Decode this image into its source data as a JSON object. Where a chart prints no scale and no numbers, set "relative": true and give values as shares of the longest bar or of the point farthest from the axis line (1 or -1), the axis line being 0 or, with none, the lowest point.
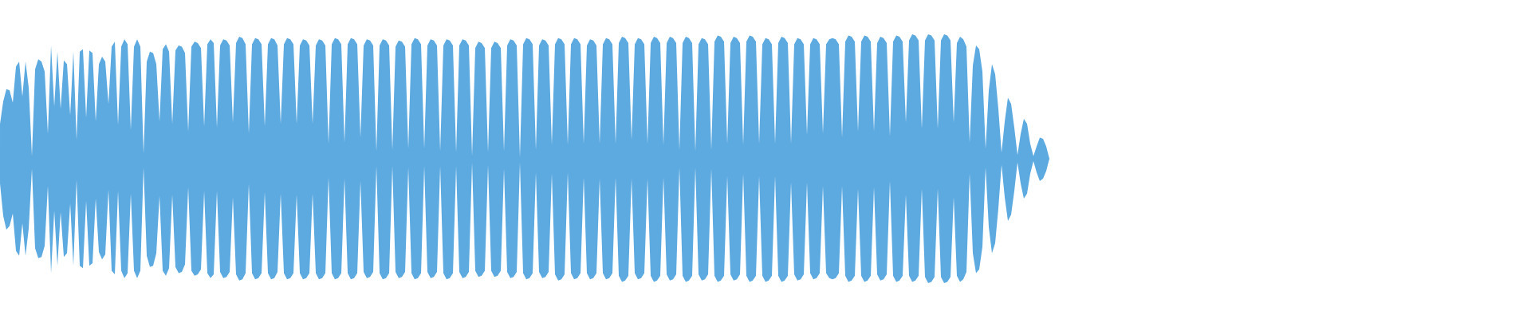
{
  "chart_data": {
    "type": "area",
    "relative": true,
    "categories": [
      null,
      null,
      null,
      null,
      null,
      null,
      null,
      null,
      null,
      null,
      null,
      null,
      null,
      null,
      null,
      null,
      null,
      null,
      null,
      null,
      null,
      null,
      null,
      null,
      null,
      null,
      null,
      null,
      null,
      null,
      null,
      null,
      null,
      null,
      null,
      null,
      null,
      null,
      null,
      null,
      null,
      null,
      null,
      null,
      null,
      null,
      null,
      null,
      null,
      null,
      null,
      null,
      null,
      null,
      null,
      null,
      null,
      null,
      null,
      null,
      null,
      null,
      null,
      null,
      null,
      null,
      null,
      null,
      null,
      null,
      null,
      null,
      null,
      null,
      null,
      null,
      null,
      null,
      null,
      null,
      null,
      null,
      null,
      null,
      null,
      null,
      null,
      null,
      null,
      null,
      null,
      null,
      null,
      null,
      null,
      null,
      null,
      null,
      null,
      null,
      null,
      null,
      null,
      null,
      null,
      null,
      null,
      null,
      null,
      null,
      null,
      null,
      null,
      null,
      null,
      null,
      null,
      null,
      null,
      null,
      null,
      null,
      null,
      null,
      null,
      null,
      null,
      null,
      null,
      null,
      null,
      null,
      null,
      null,
      null,
      null,
      null,
      null,
      null,
      null,
      null,
      null,
      null,
      null,
      null,
      null,
      null,
      null,
      null,
      null,
      null,
      null,
      null,
      null,
      null,
      null,
      null,
      null,
      null,
      null,
      null,
      null,
      null,
      null,
      null,
      null,
      null,
      null,
      null,
      null,
      null,
      null,
      null,
      null,
      null,
      null,
      null,
      null,
      null,
      null,
      null,
      null,
      null,
      null,
      null,
      null,
      null,
      null,
      null,
      null,
      null,
      null,
      null,
      null,
      null,
      null,
      null,
      null,
      null,
      null,
      null,
      null,
      null,
      null,
      null,
      null,
      null,
      null,
      null,
      null,
      null,
      null,
      null,
      null,
      null,
      null,
      null,
      null,
      null,
      null,
      null,
      null,
      null,
      null,
      null,
      null,
      null,
      null,
      null,
      null,
      null,
      null,
      null,
      null,
      null,
      null,
      null,
      null,
      null,
      null,
      null,
      null,
      null,
      null,
      null,
      null,
      null,
      null,
      null,
      null,
      null,
      null,
      null,
      null,
      null,
      null,
      null,
      null,
      null,
      null,
      null,
      null,
      null,
      null,
      null,
      null,
      null,
      null,
      null,
      null,
      null,
      null,
      null,
      null,
      null,
      null,
      null,
      null,
      null,
      null,
      null,
      null,
      null,
      null,
      null,
      null,
      null,
      null,
      null,
      null,
      null,
      null,
      null,
      null,
      null,
      null,
      null,
      null,
      null,
      null,
      null,
      null,
      null,
      null,
      null,
      null,
      null,
      null,
      null,
      null,
      null,
      null,
      null,
      null,
      null,
      null,
      null,
      null,
      null,
      null,
      null,
      null,
      null,
      null,
      null,
      null,
      null,
      null,
      null,
      null
    ],
    "series": [
      {
        "color": "#5daae1",
        "values": [
          0.28,
          0.46,
          0.56,
          0.55,
          0.45,
          0.74,
          0.78,
          0.5,
          0.78,
          0.57,
          0.02,
          0.72,
          0.8,
          0.78,
          0.7,
          0.2,
          0.91,
          0.42,
          0.86,
          0.4,
          0.79,
          0.76,
          0.35,
          0.86,
          0.15,
          0.86,
          0.88,
          0.33,
          0.87,
          0.85,
          0.3,
          0.76,
          0.82,
          0.78,
          0.44,
          0.9,
          0.94,
          0.27,
          0.9,
          0.96,
          0.92,
          0.23,
          0.9,
          0.96,
          0.9,
          0.04,
          0.78,
          0.86,
          0.85,
          0.76,
          0.3,
          0.88,
          0.92,
          0.86,
          0.28,
          0.87,
          0.91,
          0.9,
          0.85,
          0.22,
          0.9,
          0.94,
          0.93,
          0.89,
          0.26,
          0.92,
          0.96,
          0.93,
          0.25,
          0.91,
          0.96,
          0.95,
          0.91,
          0.29,
          0.93,
          0.98,
          0.97,
          0.92,
          0.2,
          0.92,
          0.97,
          0.96,
          0.92,
          0.26,
          0.92,
          0.97,
          0.96,
          0.91,
          0.28,
          0.92,
          0.97,
          0.96,
          0.92,
          0.28,
          0.91,
          0.96,
          0.95,
          0.91,
          0.28,
          0.91,
          0.96,
          0.95,
          0.91,
          0.12,
          0.92,
          0.97,
          0.96,
          0.92,
          0.13,
          0.92,
          0.97,
          0.96,
          0.92,
          0.17,
          0.91,
          0.96,
          0.95,
          0.91,
          0.06,
          0.91,
          0.96,
          0.95,
          0.91,
          0.07,
          0.9,
          0.95,
          0.94,
          0.9,
          0.08,
          0.92,
          0.97,
          0.96,
          0.92,
          0.08,
          0.91,
          0.96,
          0.95,
          0.91,
          0.06,
          0.91,
          0.96,
          0.95,
          0.91,
          0.05,
          0.91,
          0.96,
          0.95,
          0.91,
          0.02,
          0.89,
          0.94,
          0.93,
          0.89,
          0.05,
          0.89,
          0.94,
          0.93,
          0.89,
          0.06,
          0.91,
          0.96,
          0.95,
          0.91,
          0.01,
          0.92,
          0.97,
          0.96,
          0.92,
          0.07,
          0.91,
          0.96,
          0.95,
          0.91,
          0.11,
          0.92,
          0.97,
          0.96,
          0.92,
          0.11,
          0.92,
          0.97,
          0.96,
          0.92,
          0.12,
          0.91,
          0.96,
          0.95,
          0.91,
          0.12,
          0.92,
          0.97,
          0.96,
          0.92,
          0.12,
          0.93,
          0.98,
          0.97,
          0.93,
          0.15,
          0.92,
          0.97,
          0.96,
          0.92,
          0.12,
          0.93,
          0.98,
          0.97,
          0.93,
          0.11,
          0.93,
          0.98,
          0.97,
          0.93,
          0.07,
          0.93,
          0.98,
          0.97,
          0.93,
          0.06,
          0.92,
          0.97,
          0.96,
          0.92,
          0.07,
          0.94,
          0.99,
          0.98,
          0.94,
          0.12,
          0.93,
          0.98,
          0.97,
          0.93,
          0.11,
          0.94,
          0.99,
          0.98,
          0.94,
          0.12,
          0.92,
          0.97,
          0.96,
          0.92,
          0.12,
          0.93,
          0.98,
          0.97,
          0.93,
          0.12,
          0.92,
          0.97,
          0.96,
          0.92,
          0.19,
          0.92,
          0.97,
          0.96,
          0.92,
          0.2,
          0.92,
          0.96,
          0.97,
          0.96,
          0.92,
          0.17,
          0.94,
          0.99,
          0.98,
          0.94,
          0.22,
          0.94,
          0.99,
          0.98,
          0.94,
          0.22,
          0.93,
          0.98,
          0.97,
          0.93,
          0.18,
          0.94,
          0.99,
          0.98,
          0.94,
          0.29,
          0.95,
          1.0,
          0.99,
          0.95,
          0.24,
          0.95,
          1.0,
          0.99,
          0.95,
          0.24,
          0.95,
          1.0,
          0.99,
          0.95,
          0.29,
          0.93,
          0.98,
          0.96,
          0.9,
          0.13,
          0.75,
          0.91,
          0.88,
          0.7,
          0.08,
          0.55,
          0.76,
          0.68,
          0.4,
          0.05,
          0.3,
          0.49,
          0.44,
          0.25,
          0.03,
          0.2,
          0.32,
          0.28,
          0.12,
          0.02,
          0.1,
          0.17,
          0.16,
          0.1,
          0
        ]
      },
      {
        "color": "#5daae1",
        "values": [
          -0.2,
          -0.46,
          -0.57,
          -0.54,
          -0.44,
          -0.74,
          -0.78,
          -0.52,
          -0.78,
          -0.56,
          -0.08,
          -0.72,
          -0.8,
          -0.79,
          -0.7,
          -0.22,
          -0.92,
          -0.42,
          -0.86,
          -0.43,
          -0.79,
          -0.76,
          -0.36,
          -0.86,
          -0.17,
          -0.86,
          -0.88,
          -0.34,
          -0.86,
          -0.84,
          -0.32,
          -0.75,
          -0.81,
          -0.77,
          -0.25,
          -0.9,
          -0.93,
          -0.26,
          -0.9,
          -0.96,
          -0.92,
          -0.28,
          -0.9,
          -0.96,
          -0.9,
          -0.07,
          -0.78,
          -0.87,
          -0.86,
          -0.76,
          -0.3,
          -0.9,
          -0.94,
          -0.88,
          -0.29,
          -0.87,
          -0.92,
          -0.91,
          -0.85,
          -0.23,
          -0.9,
          -0.94,
          -0.93,
          -0.89,
          -0.26,
          -0.92,
          -0.96,
          -0.93,
          -0.26,
          -0.91,
          -0.96,
          -0.95,
          -0.91,
          -0.31,
          -0.93,
          -0.98,
          -0.97,
          -0.92,
          -0.2,
          -0.92,
          -0.97,
          -0.96,
          -0.92,
          -0.27,
          -0.92,
          -0.97,
          -0.96,
          -0.91,
          -0.28,
          -0.92,
          -0.97,
          -0.96,
          -0.92,
          -0.29,
          -0.92,
          -0.97,
          -0.96,
          -0.92,
          -0.28,
          -0.92,
          -0.97,
          -0.96,
          -0.92,
          -0.15,
          -0.92,
          -0.97,
          -0.96,
          -0.92,
          -0.16,
          -0.92,
          -0.97,
          -0.96,
          -0.92,
          -0.18,
          -0.91,
          -0.96,
          -0.95,
          -0.91,
          -0.06,
          -0.92,
          -0.97,
          -0.96,
          -0.92,
          -0.06,
          -0.91,
          -0.96,
          -0.95,
          -0.91,
          -0.07,
          -0.92,
          -0.97,
          -0.96,
          -0.92,
          -0.06,
          -0.91,
          -0.96,
          -0.95,
          -0.91,
          -0.06,
          -0.92,
          -0.97,
          -0.96,
          -0.92,
          -0.06,
          -0.91,
          -0.96,
          -0.95,
          -0.91,
          -0.03,
          -0.9,
          -0.95,
          -0.94,
          -0.9,
          -0.05,
          -0.9,
          -0.95,
          -0.94,
          -0.9,
          -0.08,
          -0.91,
          -0.96,
          -0.95,
          -0.91,
          -0.03,
          -0.92,
          -0.97,
          -0.96,
          -0.92,
          -0.11,
          -0.91,
          -0.96,
          -0.95,
          -0.91,
          -0.12,
          -0.93,
          -0.98,
          -0.97,
          -0.93,
          -0.11,
          -0.92,
          -0.97,
          -0.96,
          -0.92,
          -0.15,
          -0.92,
          -0.97,
          -0.96,
          -0.92,
          -0.16,
          -0.92,
          -0.97,
          -0.96,
          -0.92,
          -0.15,
          -0.94,
          -0.99,
          -0.98,
          -0.94,
          -0.16,
          -0.92,
          -0.97,
          -0.96,
          -0.92,
          -0.16,
          -0.94,
          -0.99,
          -0.98,
          -0.94,
          -0.15,
          -0.93,
          -0.98,
          -0.97,
          -0.93,
          -0.07,
          -0.94,
          -0.99,
          -0.98,
          -0.94,
          -0.07,
          -0.93,
          -0.98,
          -0.97,
          -0.93,
          -0.08,
          -0.94,
          -0.99,
          -0.98,
          -0.94,
          -0.14,
          -0.93,
          -0.98,
          -0.97,
          -0.93,
          -0.12,
          -0.94,
          -0.99,
          -0.98,
          -0.94,
          -0.14,
          -0.94,
          -0.99,
          -0.98,
          -0.94,
          -0.14,
          -0.94,
          -0.99,
          -0.98,
          -0.94,
          -0.19,
          -0.93,
          -0.98,
          -0.97,
          -0.93,
          -0.19,
          -0.92,
          -0.97,
          -0.96,
          -0.92,
          -0.22,
          -0.92,
          -0.96,
          -0.97,
          -0.96,
          -0.92,
          -0.22,
          -0.94,
          -0.99,
          -0.98,
          -0.94,
          -0.24,
          -0.94,
          -0.99,
          -0.98,
          -0.94,
          -0.23,
          -0.93,
          -0.98,
          -0.97,
          -0.93,
          -0.18,
          -0.94,
          -0.99,
          -0.98,
          -0.94,
          -0.29,
          -0.94,
          -0.99,
          -0.98,
          -0.94,
          -0.24,
          -0.95,
          -1.0,
          -0.99,
          -0.95,
          -0.24,
          -0.95,
          -1.0,
          -0.99,
          -0.95,
          -0.31,
          -0.94,
          -0.99,
          -0.97,
          -0.91,
          -0.12,
          -0.76,
          -0.92,
          -0.89,
          -0.71,
          -0.07,
          -0.55,
          -0.76,
          -0.68,
          -0.4,
          -0.05,
          -0.31,
          -0.5,
          -0.45,
          -0.26,
          -0.03,
          -0.2,
          -0.32,
          -0.28,
          -0.12,
          -0.02,
          -0.11,
          -0.18,
          -0.16,
          -0.1,
          0
        ]
      }
    ]
  }
}
